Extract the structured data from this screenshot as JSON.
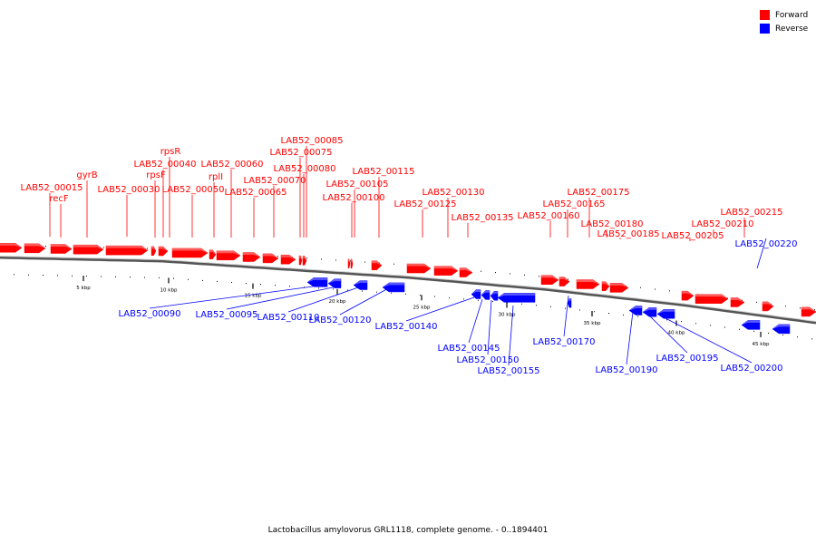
{
  "legend": {
    "forward_label": "Forward",
    "reverse_label": "Reverse",
    "forward_color": "#ff0000",
    "reverse_color": "#0000ff"
  },
  "caption": "Lactobacillus amylovorus GRL1118, complete genome. - 0..1894401",
  "ticks": [
    "5 kbp",
    "10 kbp",
    "15 kbp",
    "20 kbp",
    "25 kbp",
    "30 kbp",
    "35 kbp",
    "40 kbp",
    "45 kbp"
  ],
  "forward_labels": [
    "recF",
    "LAB52_00015",
    "gyrB",
    "rpsF",
    "LAB52_00030",
    "rpsR",
    "LAB52_00040",
    "LAB52_00050",
    "rplI",
    "LAB52_00060",
    "LAB52_00065",
    "LAB52_00070",
    "LAB52_00075",
    "LAB52_00080",
    "LAB52_00085",
    "LAB52_00100",
    "LAB52_00105",
    "LAB52_00115",
    "LAB52_00125",
    "LAB52_00130",
    "LAB52_00135",
    "LAB52_00160",
    "LAB52_00165",
    "LAB52_00175",
    "LAB52_00180",
    "LAB52_00185",
    "LAB52_00205",
    "LAB52_00210",
    "LAB52_00215"
  ],
  "reverse_labels": [
    "LAB52_00220",
    "LAB52_00090",
    "LAB52_00095",
    "LAB52_00110",
    "LAB52_00120",
    "LAB52_00140",
    "LAB52_00145",
    "LAB52_00150",
    "LAB52_00155",
    "LAB52_00170",
    "LAB52_00190",
    "LAB52_00195",
    "LAB52_00200"
  ]
}
